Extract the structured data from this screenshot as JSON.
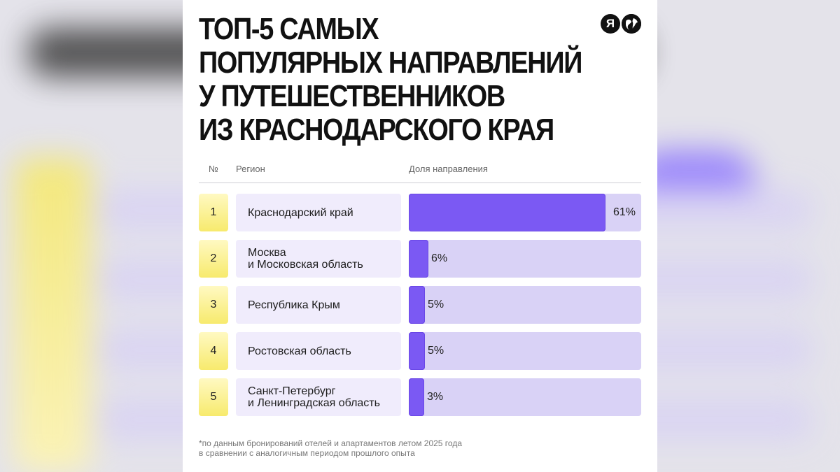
{
  "title_lines": [
    "ТОП-5 САМЫХ",
    "ПОПУЛЯРНЫХ НАПРАВЛЕНИЙ",
    "У ПУТЕШЕСТВЕННИКОВ",
    "ИЗ КРАСНОДАРСКОГО КРАЯ"
  ],
  "logos": [
    "Я",
    "🌍"
  ],
  "headers": {
    "num": "№",
    "region": "Регион",
    "share": "Доля направления"
  },
  "colors": {
    "bar": "#7b59f3",
    "track": "#d9d2f6",
    "rank_bg": "#f7ea6d",
    "region_bg": "#f0ecfc"
  },
  "chart_data": {
    "type": "bar",
    "orientation": "horizontal",
    "categories": [
      "Краснодарский край",
      "Москва и Московская область",
      "Республика Крым",
      "Ростовская область",
      "Санкт-Петербург и Ленинградская область"
    ],
    "values": [
      61,
      6,
      5,
      5,
      3
    ],
    "ylim": [
      0,
      72
    ],
    "rows": [
      {
        "rank": "1",
        "region_lines": [
          "Краснодарский край"
        ],
        "value": 61,
        "label": "61%"
      },
      {
        "rank": "2",
        "region_lines": [
          "Москва",
          "и Московская область"
        ],
        "value": 6,
        "label": "6%"
      },
      {
        "rank": "3",
        "region_lines": [
          "Республика Крым"
        ],
        "value": 5,
        "label": "5%"
      },
      {
        "rank": "4",
        "region_lines": [
          "Ростовская область"
        ],
        "value": 5,
        "label": "5%"
      },
      {
        "rank": "5",
        "region_lines": [
          "Санкт-Петербург",
          "и Ленинградская область"
        ],
        "value": 3,
        "label": "3%"
      }
    ]
  },
  "footnote_lines": [
    "*по данным бронирований отелей и апартаментов летом 2025 года",
    "в сравнении с аналогичным периодом прошлого опыта"
  ]
}
